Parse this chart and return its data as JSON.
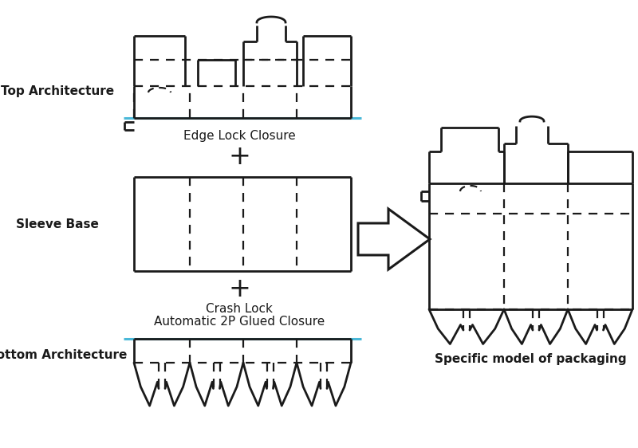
{
  "bg_color": "#ffffff",
  "line_color": "#1a1a1a",
  "dashed_color": "#1a1a1a",
  "blue_line_color": "#4ab8d8",
  "label_top_arch": "Top Architecture",
  "label_sleeve": "Sleeve Base",
  "label_bottom_arch": "Bottom Architecture",
  "label_edge_lock": "Edge Lock Closure",
  "label_crash_lock": "Crash Lock",
  "label_auto": "Automatic 2P Glued Closure",
  "label_specific": "Specific model of packaging",
  "lw": 2.0,
  "dlw": 1.6
}
